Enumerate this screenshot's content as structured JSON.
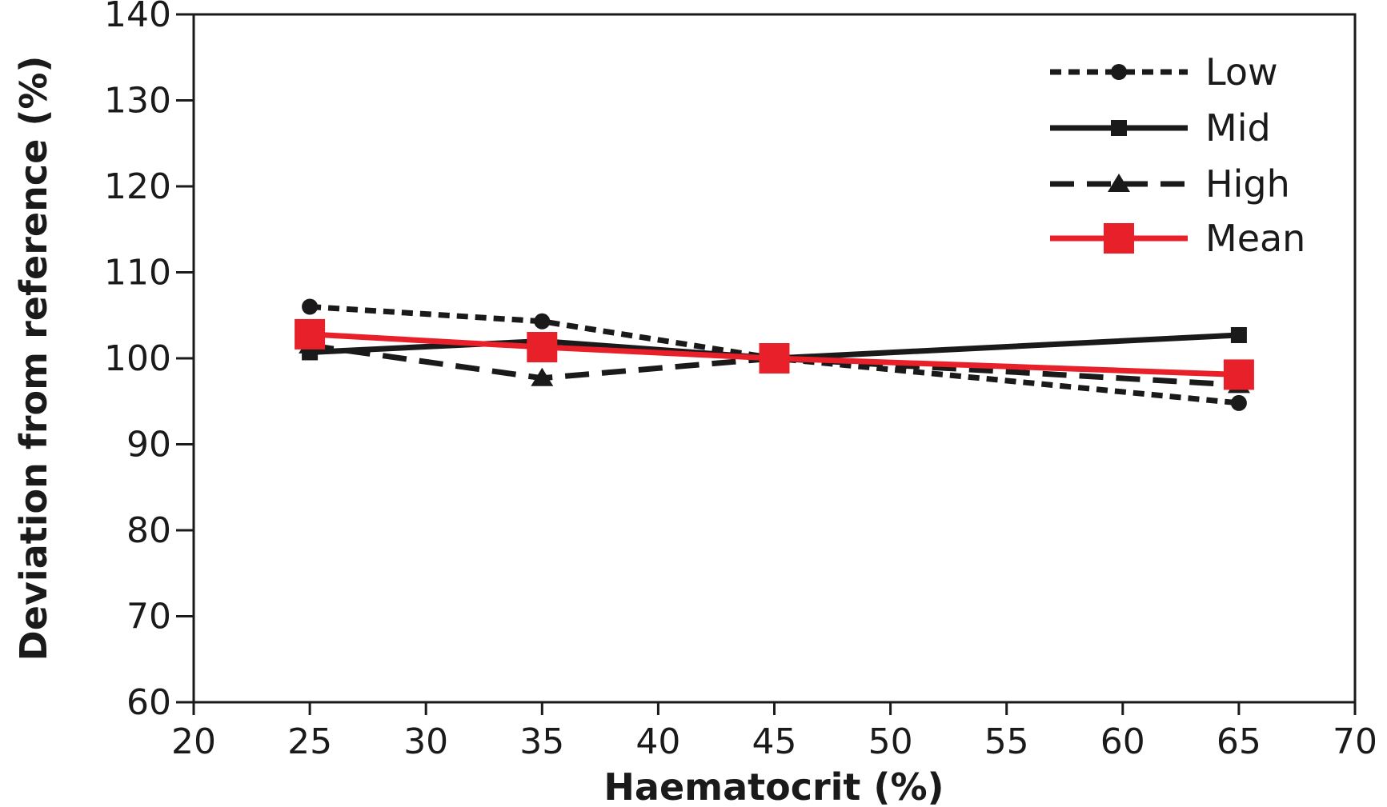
{
  "chart_data": {
    "type": "line",
    "xlabel": "Haematocrit (%)",
    "ylabel": "Deviation from reference (%)",
    "xlim": [
      20,
      70
    ],
    "ylim": [
      60,
      140
    ],
    "xticks": [
      20,
      25,
      30,
      35,
      40,
      45,
      50,
      55,
      60,
      65,
      70
    ],
    "yticks": [
      60,
      70,
      80,
      90,
      100,
      110,
      120,
      130,
      140
    ],
    "xtick_labels": [
      "20",
      "25",
      "30",
      "35",
      "40",
      "45",
      "50",
      "55",
      "60",
      "65",
      "70"
    ],
    "ytick_labels": [
      "60",
      "70",
      "80",
      "90",
      "100",
      "110",
      "120",
      "130",
      "140"
    ],
    "x": [
      25,
      35,
      45,
      65
    ],
    "grid": false,
    "legend_position": "top-right",
    "series": [
      {
        "name": "Low",
        "values": [
          106,
          104.3,
          100,
          94.8
        ],
        "color": "#1a1a1a",
        "line": "dotted",
        "marker": "circle"
      },
      {
        "name": "Mid",
        "values": [
          100.7,
          102,
          100,
          102.7
        ],
        "color": "#1a1a1a",
        "line": "solid",
        "marker": "square"
      },
      {
        "name": "High",
        "values": [
          101.5,
          97.7,
          100,
          96.9
        ],
        "color": "#1a1a1a",
        "line": "dashed",
        "marker": "triangle"
      },
      {
        "name": "Mean",
        "values": [
          102.8,
          101.3,
          100,
          98.1
        ],
        "color": "#e8202a",
        "line": "solid",
        "marker": "big-square"
      }
    ]
  }
}
